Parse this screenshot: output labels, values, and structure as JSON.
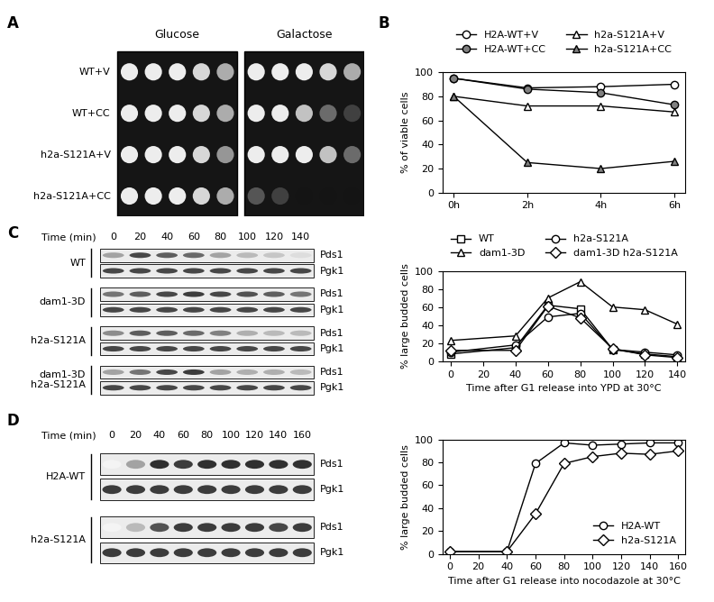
{
  "panel_labels": [
    "A",
    "B",
    "C",
    "D"
  ],
  "spot_assay": {
    "media": [
      "Glucose",
      "Galactose"
    ],
    "strains": [
      "WT+V",
      "WT+CC",
      "h2a-S121A+V",
      "h2a-S121A+CC"
    ],
    "growth": [
      [
        [
          1,
          1,
          1,
          0.9,
          0.7
        ],
        [
          1,
          1,
          1,
          0.9,
          0.7
        ],
        [
          1,
          1,
          1,
          0.9,
          0.6
        ],
        [
          1,
          1,
          1,
          0.9,
          0.7
        ]
      ],
      [
        [
          1,
          1,
          1,
          0.9,
          0.7
        ],
        [
          1,
          1,
          0.8,
          0.4,
          0.2
        ],
        [
          1,
          1,
          1,
          0.8,
          0.4
        ],
        [
          0.3,
          0.2,
          0,
          0,
          0
        ]
      ]
    ]
  },
  "blots": [
    {
      "panel": "C",
      "time_label": "Time (min)",
      "times": [
        0,
        20,
        40,
        60,
        80,
        100,
        120,
        140
      ],
      "groups": [
        {
          "name": "WT",
          "bands": [
            {
              "name": "Pds1",
              "intensity": [
                0.4,
                0.8,
                0.7,
                0.65,
                0.4,
                0.3,
                0.25,
                0.15
              ]
            },
            {
              "name": "Pgk1",
              "intensity": [
                0.8,
                0.8,
                0.8,
                0.8,
                0.8,
                0.8,
                0.8,
                0.8
              ]
            }
          ]
        },
        {
          "name": "dam1-3D",
          "bands": [
            {
              "name": "Pds1",
              "intensity": [
                0.6,
                0.7,
                0.8,
                0.85,
                0.8,
                0.75,
                0.7,
                0.6
              ]
            },
            {
              "name": "Pgk1",
              "intensity": [
                0.8,
                0.8,
                0.8,
                0.8,
                0.8,
                0.8,
                0.8,
                0.8
              ]
            }
          ]
        },
        {
          "name": "h2a-S121A",
          "bands": [
            {
              "name": "Pds1",
              "intensity": [
                0.5,
                0.7,
                0.7,
                0.65,
                0.55,
                0.35,
                0.3,
                0.3
              ]
            },
            {
              "name": "Pgk1",
              "intensity": [
                0.8,
                0.8,
                0.8,
                0.8,
                0.8,
                0.8,
                0.8,
                0.8
              ]
            }
          ]
        },
        {
          "name": "dam1-3D\nh2a-S121A",
          "bands": [
            {
              "name": "Pds1",
              "intensity": [
                0.4,
                0.6,
                0.8,
                0.85,
                0.4,
                0.35,
                0.35,
                0.3
              ]
            },
            {
              "name": "Pgk1",
              "intensity": [
                0.8,
                0.8,
                0.8,
                0.8,
                0.8,
                0.8,
                0.8,
                0.8
              ]
            }
          ]
        }
      ]
    },
    {
      "panel": "D",
      "time_label": "Time (min)",
      "times": [
        0,
        20,
        40,
        60,
        80,
        100,
        120,
        140,
        160
      ],
      "groups": [
        {
          "name": "H2A-WT",
          "bands": [
            {
              "name": "Pds1",
              "intensity": [
                0.05,
                0.4,
                0.9,
                0.85,
                0.9,
                0.9,
                0.9,
                0.9,
                0.9
              ]
            },
            {
              "name": "Pgk1",
              "intensity": [
                0.85,
                0.85,
                0.85,
                0.85,
                0.85,
                0.85,
                0.85,
                0.85,
                0.85
              ]
            }
          ]
        },
        {
          "name": "h2a-S121A",
          "bands": [
            {
              "name": "Pds1",
              "intensity": [
                0.05,
                0.3,
                0.75,
                0.85,
                0.85,
                0.85,
                0.85,
                0.8,
                0.85
              ]
            },
            {
              "name": "Pgk1",
              "intensity": [
                0.85,
                0.85,
                0.85,
                0.85,
                0.85,
                0.85,
                0.85,
                0.85,
                0.85
              ]
            }
          ]
        }
      ]
    }
  ],
  "chart_data": [
    {
      "type": "line",
      "ylabel": "% of viable cells",
      "x": [
        0,
        2,
        4,
        6
      ],
      "xlim": [
        -0.3,
        6.3
      ],
      "xticks": [
        {
          "value": 0,
          "label": "0h"
        },
        {
          "value": 2,
          "label": "2h"
        },
        {
          "value": 4,
          "label": "4h"
        },
        {
          "value": 6,
          "label": "6h"
        }
      ],
      "ylim": [
        0,
        100
      ],
      "yticks": [
        0,
        20,
        40,
        60,
        80,
        100
      ],
      "grid": false,
      "legend": "upper center",
      "series": [
        {
          "name": "H2A-WT+V",
          "color": "white",
          "marker": "circle",
          "values": [
            95,
            87,
            88,
            90
          ]
        },
        {
          "name": "H2A-WT+CC",
          "color": "#808080",
          "marker": "circle",
          "values": [
            95,
            86,
            83,
            73
          ]
        },
        {
          "name": "h2a-S121A+V",
          "color": "white",
          "marker": "triangle",
          "values": [
            80,
            72,
            72,
            67
          ]
        },
        {
          "name": "h2a-S121A+CC",
          "color": "#808080",
          "marker": "triangle",
          "values": [
            80,
            25,
            20,
            26
          ]
        }
      ]
    },
    {
      "type": "line",
      "xlabel": "Time after G1 release into YPD at 30°C",
      "ylabel": "% large budded cells",
      "x": [
        0,
        40,
        60,
        80,
        100,
        120,
        140
      ],
      "xlim": [
        -5,
        145
      ],
      "xticks": [
        0,
        20,
        40,
        60,
        80,
        100,
        120,
        140
      ],
      "ylim": [
        0,
        100
      ],
      "yticks": [
        0,
        20,
        40,
        60,
        80,
        100
      ],
      "grid": false,
      "legend": "upper center",
      "series": [
        {
          "name": "WT",
          "color": "white",
          "marker": "square",
          "values": [
            8,
            15,
            62,
            58,
            13,
            8,
            5
          ]
        },
        {
          "name": "dam1-3D",
          "color": "white",
          "marker": "triangle",
          "values": [
            23,
            28,
            70,
            88,
            60,
            57,
            41
          ]
        },
        {
          "name": "h2a-S121A",
          "color": "white",
          "marker": "circle",
          "values": [
            10,
            18,
            49,
            53,
            13,
            10,
            7
          ]
        },
        {
          "name": "dam1-3D h2a-S121A",
          "color": "white",
          "marker": "diamond",
          "values": [
            12,
            12,
            61,
            48,
            14,
            7,
            4
          ]
        }
      ]
    },
    {
      "type": "line",
      "xlabel": "Time after G1 release into nocodazole at 30°C",
      "ylabel": "% large budded cells",
      "x": [
        0,
        40,
        60,
        80,
        100,
        120,
        140,
        160
      ],
      "xlim": [
        -5,
        165
      ],
      "xticks": [
        0,
        20,
        40,
        60,
        80,
        100,
        120,
        140,
        160
      ],
      "ylim": [
        0,
        100
      ],
      "yticks": [
        0,
        20,
        40,
        60,
        80,
        100
      ],
      "grid": false,
      "legend": "lower right",
      "series": [
        {
          "name": "H2A-WT",
          "color": "white",
          "marker": "circle",
          "values": [
            2,
            2,
            79,
            97,
            95,
            96,
            97,
            97
          ]
        },
        {
          "name": "h2a-S121A",
          "color": "white",
          "marker": "diamond",
          "values": [
            2,
            2,
            35,
            79,
            85,
            88,
            87,
            90
          ]
        }
      ]
    }
  ]
}
